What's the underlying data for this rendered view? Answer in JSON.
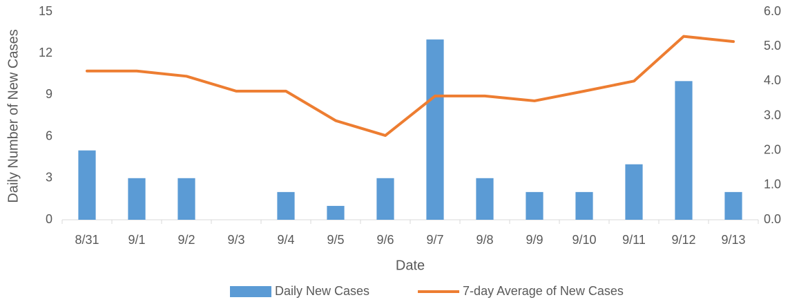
{
  "chart_data": {
    "type": "bar",
    "x_label": "Date",
    "y_label": "Daily Number of New Cases",
    "categories": [
      "8/31",
      "9/1",
      "9/2",
      "9/3",
      "9/4",
      "9/5",
      "9/6",
      "9/7",
      "9/8",
      "9/9",
      "9/10",
      "9/11",
      "9/12",
      "9/13"
    ],
    "series": [
      {
        "name": "Daily New Cases",
        "type": "bar",
        "color": "#5b9bd5",
        "values": [
          5,
          3,
          3,
          0,
          2,
          1,
          3,
          13,
          3,
          2,
          2,
          4,
          10,
          2
        ]
      },
      {
        "name": "7-day Average of New Cases",
        "type": "line",
        "axis": "y2",
        "color": "#ed7d31",
        "values": [
          4.29,
          4.29,
          4.14,
          3.71,
          3.71,
          2.86,
          2.43,
          3.57,
          3.57,
          3.43,
          3.71,
          4.0,
          5.29,
          5.14
        ]
      }
    ],
    "ylim": [
      0,
      15
    ],
    "yticks": [
      0,
      3,
      6,
      9,
      12,
      15
    ],
    "y2lim": [
      0,
      6
    ],
    "y2ticks": [
      {
        "value": 0,
        "label": "0.0"
      },
      {
        "value": 1,
        "label": "1.0"
      },
      {
        "value": 2,
        "label": "2.0"
      },
      {
        "value": 3,
        "label": "3.0"
      },
      {
        "value": 4,
        "label": "4.0"
      },
      {
        "value": 5,
        "label": "5.0"
      },
      {
        "value": 6,
        "label": "6.0"
      }
    ],
    "grid": false,
    "legend": "bottom"
  }
}
